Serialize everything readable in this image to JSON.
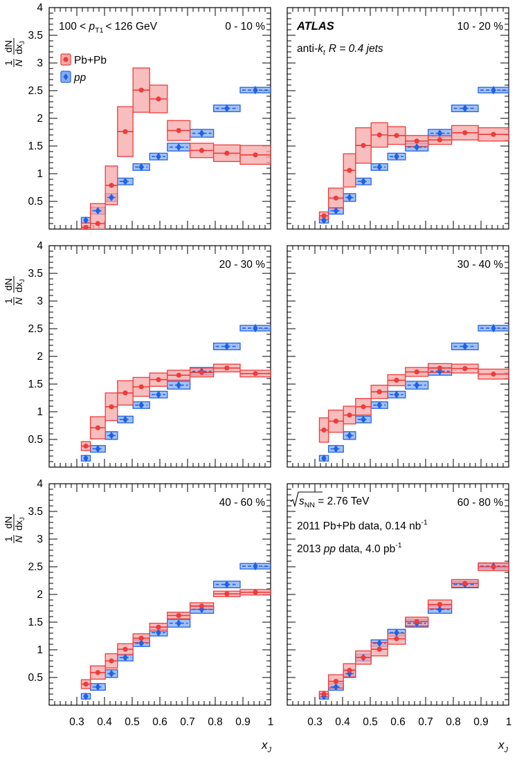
{
  "figure": {
    "experiment": "ATLAS",
    "jet_algo_prefix": "anti-",
    "jet_algo_k": "k",
    "jet_algo_t": "t",
    "jet_radius": "R = 0.4 jets",
    "pt_range_lo": "100 <",
    "pt_symbol": "p",
    "pt_sub": "T1",
    "pt_range_hi": "< 126 GeV",
    "energy_sqrt": "√",
    "energy_s": "s",
    "energy_sub": "NN",
    "energy_value": " = 2.76 TeV",
    "pbpb_data_text": "2011 Pb+Pb data, 0.14 nb",
    "pbpb_lumi_sup": "-1",
    "pp_data_year": "2013 ",
    "pp_data_pp": "pp",
    "pp_data_text": " data, 4.0 pb",
    "pp_lumi_sup": "-1",
    "ylabel_one": "1",
    "ylabel_N": "N",
    "ylabel_dN": "dN",
    "ylabel_dx": "dx",
    "ylabel_sub": "J",
    "xlabel": "x",
    "xlabel_sub": "J",
    "legend_pbpb": "Pb+Pb",
    "legend_pp": "pp",
    "colors": {
      "pbpb": "#ee3b3b",
      "pbpb_fill": "#f5a7a7",
      "pp": "#1f62e6",
      "pp_fill": "#86aef2"
    }
  },
  "chart_data": {
    "type": "scatter",
    "xlim": [
      0.2,
      1.0
    ],
    "ylim": [
      0,
      4
    ],
    "x_ticks": [
      "0.3",
      "0.4",
      "0.5",
      "0.6",
      "0.7",
      "0.8",
      "0.9",
      "1"
    ],
    "y_ticks": [
      "0.5",
      "1",
      "1.5",
      "2",
      "2.5",
      "3",
      "3.5",
      "4"
    ],
    "bins": [
      {
        "center": 0.3325,
        "lo": 0.3162,
        "hi": 0.349
      },
      {
        "center": 0.376,
        "lo": 0.349,
        "hi": 0.403
      },
      {
        "center": 0.425,
        "lo": 0.403,
        "hi": 0.447
      },
      {
        "center": 0.475,
        "lo": 0.447,
        "hi": 0.503
      },
      {
        "center": 0.533,
        "lo": 0.503,
        "hi": 0.563
      },
      {
        "center": 0.595,
        "lo": 0.563,
        "hi": 0.627
      },
      {
        "center": 0.668,
        "lo": 0.627,
        "hi": 0.709
      },
      {
        "center": 0.751,
        "lo": 0.709,
        "hi": 0.794
      },
      {
        "center": 0.842,
        "lo": 0.794,
        "hi": 0.89
      },
      {
        "center": 0.945,
        "lo": 0.89,
        "hi": 1.0
      }
    ],
    "pp": {
      "name": "pp",
      "values": [
        0.16,
        0.33,
        0.57,
        0.86,
        1.12,
        1.31,
        1.48,
        1.73,
        2.18,
        2.51
      ],
      "sys": [
        0.05,
        0.06,
        0.07,
        0.06,
        0.06,
        0.06,
        0.07,
        0.07,
        0.06,
        0.05
      ],
      "stat": [
        0.03,
        0.03,
        0.03,
        0.03,
        0.03,
        0.03,
        0.03,
        0.04,
        0.05,
        0.07
      ]
    },
    "panels": [
      {
        "centrality": "0 - 10 %",
        "pbpb": [
          0.03,
          0.1,
          0.79,
          1.76,
          2.51,
          2.35,
          1.78,
          1.42,
          1.37,
          1.34
        ],
        "pbpb_sys": [
          0.08,
          0.36,
          0.35,
          0.45,
          0.4,
          0.25,
          0.18,
          0.13,
          0.15,
          0.17
        ]
      },
      {
        "centrality": "10 - 20 %",
        "pbpb": [
          0.24,
          0.56,
          1.06,
          1.51,
          1.7,
          1.69,
          1.59,
          1.61,
          1.74,
          1.71
        ],
        "pbpb_sys": [
          0.07,
          0.18,
          0.3,
          0.32,
          0.22,
          0.16,
          0.1,
          0.08,
          0.13,
          0.12
        ]
      },
      {
        "centrality": "20 - 30 %",
        "pbpb": [
          0.38,
          0.71,
          1.09,
          1.34,
          1.45,
          1.58,
          1.66,
          1.71,
          1.79,
          1.69
        ],
        "pbpb_sys": [
          0.08,
          0.2,
          0.25,
          0.22,
          0.17,
          0.12,
          0.09,
          0.08,
          0.07,
          0.06
        ]
      },
      {
        "centrality": "30 - 40 %",
        "pbpb": [
          0.67,
          0.83,
          0.94,
          1.09,
          1.36,
          1.57,
          1.72,
          1.79,
          1.78,
          1.68
        ],
        "pbpb_sys": [
          0.22,
          0.2,
          0.16,
          0.15,
          0.12,
          0.1,
          0.08,
          0.08,
          0.08,
          0.09
        ]
      },
      {
        "centrality": "40 - 60 %",
        "pbpb": [
          0.38,
          0.59,
          0.8,
          1.01,
          1.21,
          1.41,
          1.62,
          1.79,
          2.01,
          2.04
        ],
        "pbpb_sys": [
          0.08,
          0.12,
          0.13,
          0.1,
          0.08,
          0.07,
          0.06,
          0.06,
          0.05,
          0.05
        ]
      },
      {
        "centrality": "60 - 80 %",
        "pbpb": [
          0.2,
          0.43,
          0.63,
          0.86,
          1.01,
          1.2,
          1.51,
          1.82,
          2.2,
          2.5
        ],
        "pbpb_sys": [
          0.05,
          0.12,
          0.12,
          0.12,
          0.12,
          0.1,
          0.08,
          0.08,
          0.07,
          0.07
        ]
      }
    ]
  }
}
